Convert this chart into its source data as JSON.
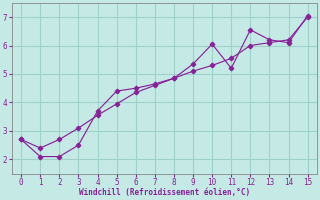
{
  "background_color": "#c5eae6",
  "grid_color": "#a0d0cc",
  "line_color": "#882299",
  "xlabel": "Windchill (Refroidissement éolien,°C)",
  "x": [
    0,
    1,
    2,
    3,
    4,
    5,
    6,
    7,
    8,
    9,
    10,
    11,
    12,
    13,
    14,
    15
  ],
  "y_jagged": [
    2.7,
    2.1,
    2.1,
    2.5,
    3.7,
    4.4,
    4.5,
    4.65,
    4.85,
    5.35,
    6.05,
    5.2,
    6.55,
    6.2,
    6.1,
    7.05
  ],
  "y_smooth": [
    2.7,
    2.4,
    2.7,
    3.1,
    3.55,
    3.95,
    4.35,
    4.6,
    4.85,
    5.1,
    5.3,
    5.55,
    6.0,
    6.1,
    6.2,
    7.0
  ],
  "ylim": [
    1.5,
    7.5
  ],
  "xlim": [
    -0.5,
    15.5
  ],
  "yticks": [
    2,
    3,
    4,
    5,
    6,
    7
  ],
  "xticks": [
    0,
    1,
    2,
    3,
    4,
    5,
    6,
    7,
    8,
    9,
    10,
    11,
    12,
    13,
    14,
    15
  ]
}
